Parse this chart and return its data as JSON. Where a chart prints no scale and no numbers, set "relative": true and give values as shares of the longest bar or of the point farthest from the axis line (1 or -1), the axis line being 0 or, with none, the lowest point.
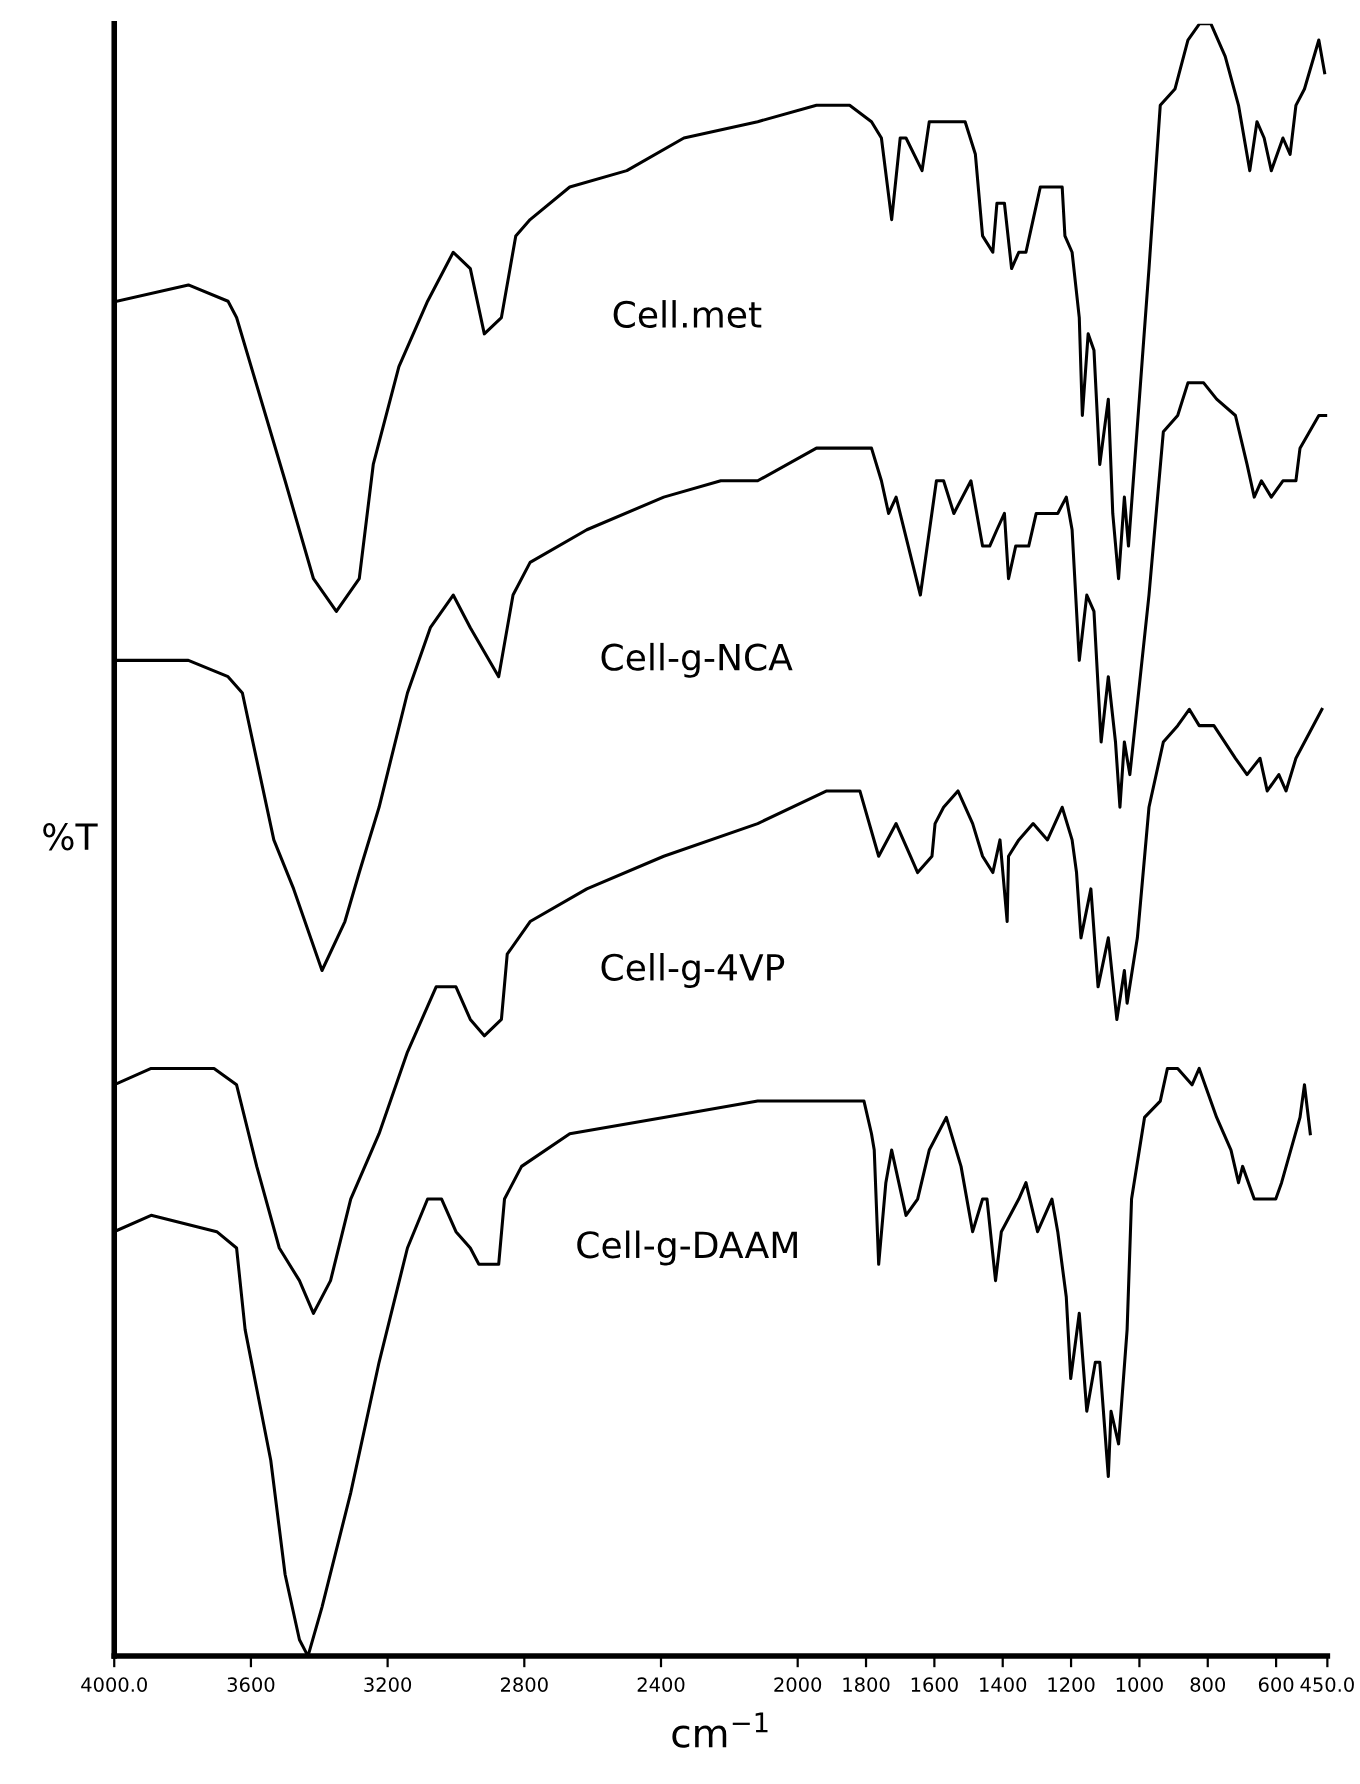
{
  "chart_data": {
    "type": "line",
    "relative": true,
    "xlabel": "cm$^{−1}$",
    "ylabel": "%T",
    "xlim": [
      4000,
      450
    ],
    "xticks": [
      {
        "value": 4000,
        "label": "4000.0"
      },
      3600,
      3200,
      2800,
      2400,
      2000,
      1800,
      1600,
      1400,
      1200,
      1000,
      800,
      600,
      {
        "value": 450,
        "label": "450.0"
      }
    ],
    "grid": false,
    "legend": false,
    "marker": "none",
    "line_style": "solid",
    "series": [
      {
        "name": "Cell.met",
        "color": "#000000",
        "x": [
          3992,
          3783,
          3667,
          3642,
          3500,
          3417,
          3350,
          3283,
          3242,
          3167,
          3083,
          3008,
          2958,
          2917,
          2867,
          2825,
          2783,
          2667,
          2500,
          2333,
          2117,
          1945,
          1848,
          1784,
          1755,
          1725,
          1700,
          1683,
          1636,
          1615,
          1565,
          1510,
          1480,
          1459,
          1429,
          1417,
          1395,
          1374,
          1353,
          1332,
          1311,
          1290,
          1260,
          1226,
          1218,
          1197,
          1176,
          1167,
          1150,
          1133,
          1116,
          1091,
          1078,
          1061,
          1044,
          1032,
          972,
          939,
          896,
          858,
          824,
          816,
          791,
          749,
          710,
          677,
          656,
          635,
          614,
          580,
          559,
          542,
          517,
          475,
          458
        ],
        "values": [
          0.83,
          0.84,
          0.83,
          0.82,
          0.72,
          0.66,
          0.64,
          0.66,
          0.73,
          0.79,
          0.83,
          0.86,
          0.85,
          0.81,
          0.82,
          0.87,
          0.88,
          0.9,
          0.91,
          0.93,
          0.94,
          0.95,
          0.95,
          0.94,
          0.93,
          0.88,
          0.93,
          0.93,
          0.91,
          0.94,
          0.94,
          0.94,
          0.92,
          0.87,
          0.86,
          0.89,
          0.89,
          0.85,
          0.86,
          0.86,
          0.88,
          0.9,
          0.9,
          0.9,
          0.87,
          0.86,
          0.82,
          0.76,
          0.81,
          0.8,
          0.73,
          0.77,
          0.7,
          0.66,
          0.71,
          0.68,
          0.85,
          0.95,
          0.96,
          0.99,
          1.0,
          1.0,
          1.0,
          0.98,
          0.95,
          0.91,
          0.94,
          0.93,
          0.91,
          0.93,
          0.92,
          0.95,
          0.96,
          0.99,
          0.97
        ]
      },
      {
        "name": "Cell-g-NCA",
        "color": "#000000",
        "x": [
          3992,
          3783,
          3667,
          3625,
          3533,
          3475,
          3392,
          3325,
          3283,
          3225,
          3142,
          3075,
          3008,
          2958,
          2875,
          2833,
          2783,
          2617,
          2392,
          2225,
          2117,
          1945,
          1831,
          1784,
          1755,
          1734,
          1712,
          1641,
          1594,
          1573,
          1543,
          1493,
          1459,
          1438,
          1417,
          1395,
          1383,
          1362,
          1324,
          1302,
          1277,
          1239,
          1214,
          1197,
          1176,
          1154,
          1133,
          1112,
          1091,
          1070,
          1057,
          1044,
          1028,
          972,
          930,
          888,
          858,
          812,
          774,
          719,
          685,
          664,
          643,
          614,
          580,
          542,
          530,
          475,
          454
        ],
        "values": [
          0.61,
          0.61,
          0.6,
          0.59,
          0.5,
          0.47,
          0.42,
          0.45,
          0.48,
          0.52,
          0.59,
          0.63,
          0.65,
          0.63,
          0.6,
          0.65,
          0.67,
          0.69,
          0.71,
          0.72,
          0.72,
          0.74,
          0.74,
          0.74,
          0.72,
          0.7,
          0.71,
          0.65,
          0.72,
          0.72,
          0.7,
          0.72,
          0.68,
          0.68,
          0.69,
          0.7,
          0.66,
          0.68,
          0.68,
          0.7,
          0.7,
          0.7,
          0.71,
          0.69,
          0.61,
          0.65,
          0.64,
          0.56,
          0.6,
          0.56,
          0.52,
          0.56,
          0.54,
          0.65,
          0.75,
          0.76,
          0.78,
          0.78,
          0.77,
          0.76,
          0.73,
          0.71,
          0.72,
          0.71,
          0.72,
          0.72,
          0.74,
          0.76,
          0.76
        ]
      },
      {
        "name": "Cell-g-4VP",
        "color": "#000000",
        "x": [
          4000,
          3892,
          3783,
          3708,
          3642,
          3583,
          3517,
          3458,
          3417,
          3367,
          3308,
          3225,
          3142,
          3058,
          3000,
          2958,
          2917,
          2867,
          2850,
          2783,
          2617,
          2392,
          2117,
          1915,
          1818,
          1763,
          1712,
          1670,
          1649,
          1607,
          1598,
          1573,
          1531,
          1488,
          1459,
          1429,
          1408,
          1387,
          1383,
          1353,
          1311,
          1269,
          1226,
          1197,
          1184,
          1171,
          1142,
          1121,
          1091,
          1066,
          1044,
          1036,
          1006,
          972,
          930,
          888,
          854,
          825,
          782,
          719,
          685,
          647,
          626,
          592,
          571,
          542,
          466
        ],
        "values": [
          0.35,
          0.36,
          0.36,
          0.36,
          0.35,
          0.3,
          0.25,
          0.23,
          0.21,
          0.23,
          0.28,
          0.32,
          0.37,
          0.41,
          0.41,
          0.39,
          0.38,
          0.39,
          0.43,
          0.45,
          0.47,
          0.49,
          0.51,
          0.53,
          0.53,
          0.49,
          0.51,
          0.49,
          0.48,
          0.49,
          0.51,
          0.52,
          0.53,
          0.51,
          0.49,
          0.48,
          0.5,
          0.45,
          0.49,
          0.5,
          0.51,
          0.5,
          0.52,
          0.5,
          0.48,
          0.44,
          0.47,
          0.41,
          0.44,
          0.39,
          0.42,
          0.4,
          0.44,
          0.52,
          0.56,
          0.57,
          0.58,
          0.57,
          0.57,
          0.55,
          0.54,
          0.55,
          0.53,
          0.54,
          0.53,
          0.55,
          0.58
        ]
      },
      {
        "name": "Cell-g-DAAM",
        "color": "#000000",
        "x": [
          4000,
          3892,
          3700,
          3642,
          3617,
          3542,
          3500,
          3458,
          3433,
          3392,
          3308,
          3225,
          3142,
          3083,
          3042,
          3000,
          2958,
          2933,
          2875,
          2858,
          2808,
          2667,
          2392,
          2117,
          1945,
          1860,
          1806,
          1784,
          1776,
          1763,
          1742,
          1725,
          1683,
          1649,
          1615,
          1565,
          1522,
          1488,
          1459,
          1446,
          1421,
          1404,
          1353,
          1332,
          1298,
          1256,
          1239,
          1214,
          1201,
          1176,
          1154,
          1129,
          1116,
          1091,
          1083,
          1061,
          1036,
          1023,
          985,
          939,
          918,
          888,
          846,
          825,
          774,
          732,
          710,
          698,
          664,
          622,
          601,
          584,
          530,
          517,
          500
        ],
        "values": [
          0.26,
          0.27,
          0.26,
          0.25,
          0.2,
          0.12,
          0.05,
          0.01,
          0.0,
          0.03,
          0.1,
          0.18,
          0.25,
          0.28,
          0.28,
          0.26,
          0.25,
          0.24,
          0.24,
          0.28,
          0.3,
          0.32,
          0.33,
          0.34,
          0.34,
          0.34,
          0.34,
          0.32,
          0.31,
          0.24,
          0.29,
          0.31,
          0.27,
          0.28,
          0.31,
          0.33,
          0.3,
          0.26,
          0.28,
          0.28,
          0.23,
          0.26,
          0.28,
          0.29,
          0.26,
          0.28,
          0.26,
          0.22,
          0.17,
          0.21,
          0.15,
          0.18,
          0.18,
          0.11,
          0.15,
          0.13,
          0.2,
          0.28,
          0.33,
          0.34,
          0.36,
          0.36,
          0.35,
          0.36,
          0.33,
          0.31,
          0.29,
          0.3,
          0.28,
          0.28,
          0.28,
          0.29,
          0.33,
          0.35,
          0.32
        ]
      }
    ]
  }
}
